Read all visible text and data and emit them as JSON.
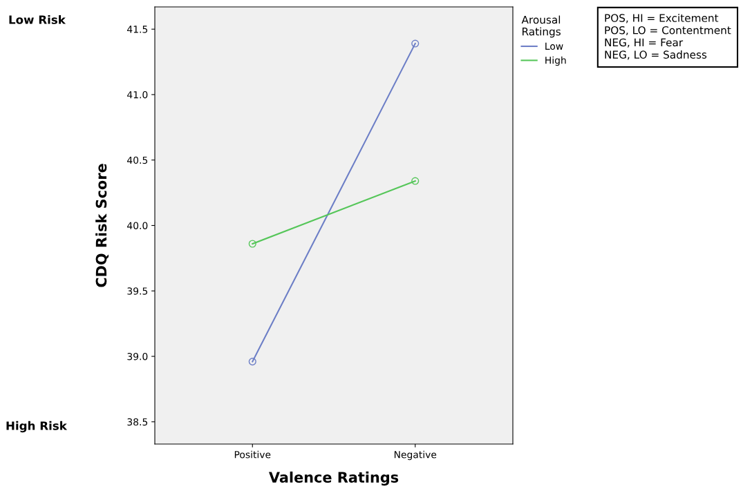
{
  "chart_data": {
    "type": "line",
    "xlabel": "Valence Ratings",
    "ylabel": "CDQ Risk Score",
    "legend_title": "Arousal Ratings",
    "categories": [
      "Positive",
      "Negative"
    ],
    "series": [
      {
        "name": "Low",
        "color": "#6c7ec6",
        "values": [
          38.96,
          41.39
        ]
      },
      {
        "name": "High",
        "color": "#55c659",
        "values": [
          39.86,
          40.34
        ]
      }
    ],
    "ylim": [
      38.33,
      41.67
    ],
    "yticks": [
      {
        "value": 38.5,
        "label": "38.5"
      },
      {
        "value": 39.0,
        "label": "39.0"
      },
      {
        "value": 39.5,
        "label": "39.5"
      },
      {
        "value": 40.0,
        "label": "40.0"
      },
      {
        "value": 40.5,
        "label": "40.5"
      },
      {
        "value": 41.0,
        "label": "41.0"
      },
      {
        "value": 41.5,
        "label": "41.5"
      }
    ],
    "marker": "circle",
    "line_style": "solid",
    "grid": false,
    "legend": "top right",
    "annotations": [
      "Low Risk",
      "High Risk",
      "POS, HI = Excitement",
      "POS, LO = Contentment",
      "NEG, HI = Fear",
      "NEG, LO = Sadness"
    ]
  }
}
